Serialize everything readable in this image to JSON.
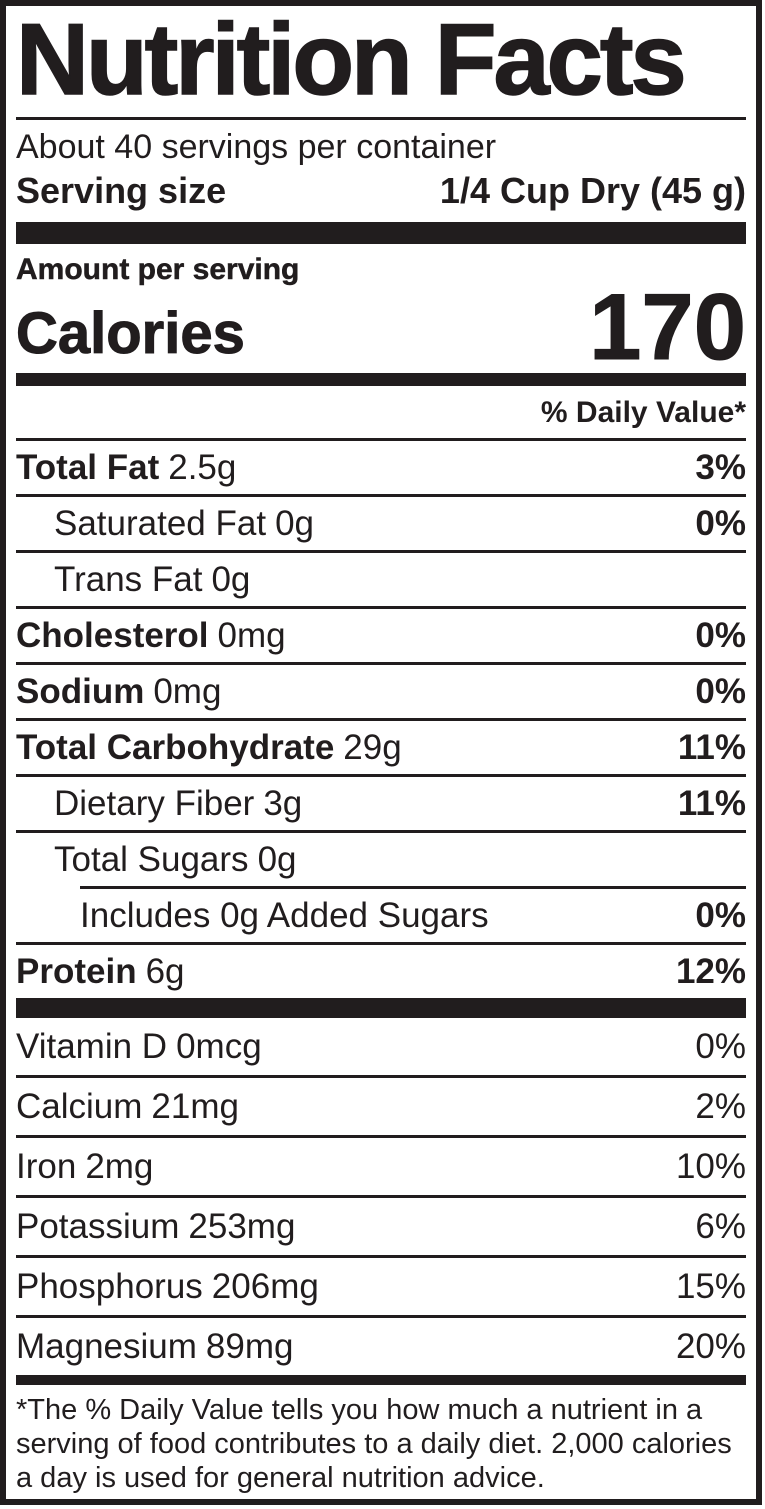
{
  "nutrition_label": {
    "ink_color": "#211d1e",
    "title": "Nutrition Facts",
    "servings_per_container": "About 40 servings per container",
    "serving_size": {
      "label": "Serving size",
      "value": "1/4 Cup Dry (45 g)"
    },
    "calories": {
      "context": "Amount per serving",
      "label": "Calories",
      "value": "170"
    },
    "daily_value_header": "% Daily Value*",
    "nutrients": [
      {
        "name": "Total Fat",
        "amount": "2.5g",
        "dv": "3%"
      },
      {
        "name": "Saturated Fat",
        "amount": "0g",
        "dv": "0%"
      },
      {
        "name": "Trans Fat",
        "amount": "0g",
        "dv": ""
      },
      {
        "name": "Cholesterol",
        "amount": "0mg",
        "dv": "0%"
      },
      {
        "name": "Sodium",
        "amount": "0mg",
        "dv": "0%"
      },
      {
        "name": "Total Carbohydrate",
        "amount": "29g",
        "dv": "11%"
      },
      {
        "name": "Dietary Fiber",
        "amount": "3g",
        "dv": "11%"
      },
      {
        "name": "Total Sugars",
        "amount": "0g",
        "dv": ""
      },
      {
        "name": "Includes 0g Added Sugars",
        "amount": "",
        "dv": "0%"
      },
      {
        "name": "Protein",
        "amount": "6g",
        "dv": "12%"
      }
    ],
    "micronutrients": [
      {
        "name": "Vitamin D",
        "amount": "0mcg",
        "dv": "0%"
      },
      {
        "name": "Calcium",
        "amount": "21mg",
        "dv": "2%"
      },
      {
        "name": "Iron",
        "amount": "2mg",
        "dv": "10%"
      },
      {
        "name": "Potassium",
        "amount": "253mg",
        "dv": "6%"
      },
      {
        "name": "Phosphorus",
        "amount": "206mg",
        "dv": "15%"
      },
      {
        "name": "Magnesium",
        "amount": "89mg",
        "dv": "20%"
      }
    ],
    "footnote": "*The % Daily Value tells you how much a nutrient in a serving of food contributes to a daily diet. 2,000 calories a day is used for general nutrition advice."
  }
}
